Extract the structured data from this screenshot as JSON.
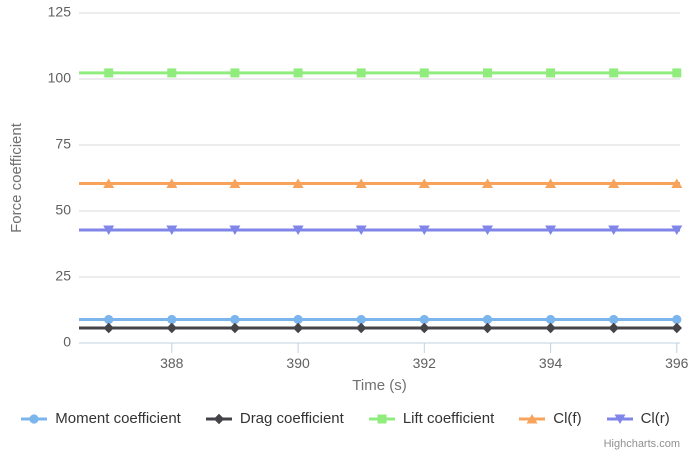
{
  "chart_data": {
    "type": "line",
    "title": "",
    "xlabel": "Time (s)",
    "ylabel": "Force coefficient",
    "x": [
      387,
      388,
      389,
      390,
      391,
      392,
      393,
      394,
      395,
      396
    ],
    "series": [
      {
        "name": "Moment coefficient",
        "color": "#7cb5ec",
        "marker": "circle",
        "values": [
          8.9,
          8.9,
          8.9,
          8.9,
          8.9,
          8.9,
          8.9,
          8.9,
          8.9,
          8.9
        ]
      },
      {
        "name": "Drag coefficient",
        "color": "#434348",
        "marker": "diamond",
        "values": [
          5.7,
          5.7,
          5.7,
          5.7,
          5.7,
          5.7,
          5.7,
          5.7,
          5.7,
          5.7
        ]
      },
      {
        "name": "Lift coefficient",
        "color": "#90ed7d",
        "marker": "square",
        "values": [
          102.3,
          102.3,
          102.3,
          102.3,
          102.3,
          102.3,
          102.3,
          102.3,
          102.3,
          102.3
        ]
      },
      {
        "name": "Cl(f)",
        "color": "#f7a35c",
        "marker": "triangle",
        "values": [
          60.4,
          60.4,
          60.4,
          60.4,
          60.4,
          60.4,
          60.4,
          60.4,
          60.4,
          60.4
        ]
      },
      {
        "name": "Cl(r)",
        "color": "#8085e9",
        "marker": "triangle-down",
        "values": [
          42.8,
          42.8,
          42.8,
          42.8,
          42.8,
          42.8,
          42.8,
          42.8,
          42.8,
          42.8
        ]
      }
    ],
    "xlim": [
      386.53,
      396.05
    ],
    "ylim": [
      0,
      125
    ],
    "xticks": [
      388,
      390,
      392,
      394,
      396
    ],
    "yticks": [
      0,
      25,
      50,
      75,
      100,
      125
    ],
    "grid": true,
    "legend_position": "bottom"
  },
  "styles": {
    "grid_color": "#d8d8d8",
    "axis_line_color": "#c0d0e0",
    "label_color": "#606060",
    "axis_title_color": "#707070",
    "legend_text_color": "#333333"
  },
  "credit": {
    "label": "Highcharts.com"
  }
}
